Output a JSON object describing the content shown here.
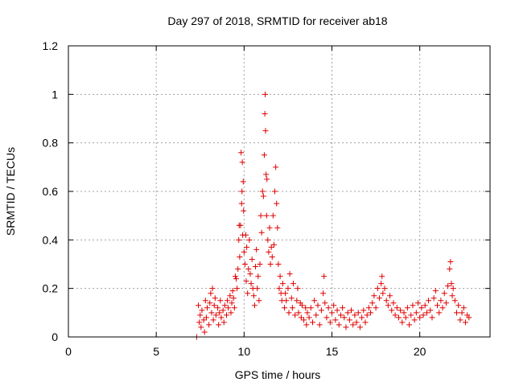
{
  "chart_data": {
    "type": "scatter",
    "title": "Day 297 of 2018, SRMTID for receiver ab18",
    "xlabel": "GPS time / hours",
    "ylabel": "SRMTID / TECUs",
    "xlim": [
      0,
      24
    ],
    "ylim": [
      0,
      1.2
    ],
    "x_ticks": [
      0,
      5,
      10,
      15,
      20
    ],
    "x_tick_labels": [
      "0",
      "5",
      "10",
      "15",
      "20"
    ],
    "y_ticks": [
      0,
      0.2,
      0.4,
      0.6,
      0.8,
      1.0,
      1.2
    ],
    "y_tick_labels": [
      "0",
      "0.2",
      "0.4",
      "0.6",
      "0.8",
      "1",
      "1.2"
    ],
    "grid": true,
    "marker": "plus",
    "series": [
      {
        "name": "ab18",
        "color": "#e00000",
        "points": [
          [
            7.3,
            0.0
          ],
          [
            7.4,
            0.13
          ],
          [
            7.45,
            0.06
          ],
          [
            7.5,
            0.09
          ],
          [
            7.55,
            0.04
          ],
          [
            7.6,
            0.11
          ],
          [
            7.7,
            0.07
          ],
          [
            7.75,
            0.02
          ],
          [
            7.8,
            0.15
          ],
          [
            7.85,
            0.08
          ],
          [
            7.9,
            0.12
          ],
          [
            8.0,
            0.05
          ],
          [
            8.05,
            0.14
          ],
          [
            8.1,
            0.18
          ],
          [
            8.15,
            0.1
          ],
          [
            8.2,
            0.2
          ],
          [
            8.25,
            0.07
          ],
          [
            8.3,
            0.13
          ],
          [
            8.35,
            0.16
          ],
          [
            8.4,
            0.09
          ],
          [
            8.5,
            0.12
          ],
          [
            8.55,
            0.05
          ],
          [
            8.6,
            0.1
          ],
          [
            8.65,
            0.15
          ],
          [
            8.7,
            0.08
          ],
          [
            8.8,
            0.11
          ],
          [
            8.85,
            0.06
          ],
          [
            8.9,
            0.13
          ],
          [
            9.0,
            0.09
          ],
          [
            9.05,
            0.15
          ],
          [
            9.1,
            0.12
          ],
          [
            9.2,
            0.17
          ],
          [
            9.25,
            0.1
          ],
          [
            9.3,
            0.14
          ],
          [
            9.35,
            0.19
          ],
          [
            9.4,
            0.16
          ],
          [
            9.45,
            0.12
          ],
          [
            9.5,
            0.25
          ],
          [
            9.55,
            0.24
          ],
          [
            9.6,
            0.2
          ],
          [
            9.65,
            0.28
          ],
          [
            9.7,
            0.4
          ],
          [
            9.72,
            0.46
          ],
          [
            9.75,
            0.33
          ],
          [
            9.8,
            0.46
          ],
          [
            9.83,
            0.76
          ],
          [
            9.86,
            0.55
          ],
          [
            9.88,
            0.6
          ],
          [
            9.9,
            0.72
          ],
          [
            9.92,
            0.42
          ],
          [
            9.95,
            0.64
          ],
          [
            9.97,
            0.52
          ],
          [
            10.0,
            0.35
          ],
          [
            10.05,
            0.3
          ],
          [
            10.1,
            0.42
          ],
          [
            10.12,
            0.23
          ],
          [
            10.15,
            0.37
          ],
          [
            10.2,
            0.18
          ],
          [
            10.25,
            0.28
          ],
          [
            10.3,
            0.4
          ],
          [
            10.35,
            0.26
          ],
          [
            10.4,
            0.22
          ],
          [
            10.45,
            0.32
          ],
          [
            10.5,
            0.2
          ],
          [
            10.55,
            0.17
          ],
          [
            10.6,
            0.13
          ],
          [
            10.65,
            0.29
          ],
          [
            10.7,
            0.36
          ],
          [
            10.75,
            0.2
          ],
          [
            10.8,
            0.25
          ],
          [
            10.85,
            0.15
          ],
          [
            10.9,
            0.3
          ],
          [
            10.95,
            0.5
          ],
          [
            11.0,
            0.43
          ],
          [
            11.05,
            0.6
          ],
          [
            11.1,
            0.58
          ],
          [
            11.15,
            0.75
          ],
          [
            11.18,
            0.92
          ],
          [
            11.2,
            1.0
          ],
          [
            11.22,
            0.85
          ],
          [
            11.25,
            0.67
          ],
          [
            11.28,
            0.5
          ],
          [
            11.3,
            0.65
          ],
          [
            11.35,
            0.4
          ],
          [
            11.4,
            0.35
          ],
          [
            11.45,
            0.45
          ],
          [
            11.5,
            0.3
          ],
          [
            11.55,
            0.37
          ],
          [
            11.6,
            0.33
          ],
          [
            11.65,
            0.5
          ],
          [
            11.7,
            0.38
          ],
          [
            11.75,
            0.6
          ],
          [
            11.8,
            0.7
          ],
          [
            11.85,
            0.55
          ],
          [
            11.9,
            0.45
          ],
          [
            11.95,
            0.3
          ],
          [
            12.0,
            0.2
          ],
          [
            12.05,
            0.25
          ],
          [
            12.1,
            0.18
          ],
          [
            12.15,
            0.15
          ],
          [
            12.2,
            0.22
          ],
          [
            12.3,
            0.12
          ],
          [
            12.35,
            0.18
          ],
          [
            12.4,
            0.15
          ],
          [
            12.5,
            0.2
          ],
          [
            12.55,
            0.1
          ],
          [
            12.6,
            0.26
          ],
          [
            12.7,
            0.16
          ],
          [
            12.75,
            0.12
          ],
          [
            12.8,
            0.22
          ],
          [
            12.9,
            0.09
          ],
          [
            13.0,
            0.15
          ],
          [
            13.05,
            0.2
          ],
          [
            13.1,
            0.1
          ],
          [
            13.2,
            0.14
          ],
          [
            13.25,
            0.08
          ],
          [
            13.3,
            0.13
          ],
          [
            13.4,
            0.07
          ],
          [
            13.5,
            0.12
          ],
          [
            13.55,
            0.05
          ],
          [
            13.6,
            0.1
          ],
          [
            13.7,
            0.08
          ],
          [
            13.8,
            0.12
          ],
          [
            13.9,
            0.06
          ],
          [
            14.0,
            0.15
          ],
          [
            14.1,
            0.09
          ],
          [
            14.2,
            0.13
          ],
          [
            14.3,
            0.05
          ],
          [
            14.4,
            0.11
          ],
          [
            14.5,
            0.18
          ],
          [
            14.55,
            0.25
          ],
          [
            14.6,
            0.14
          ],
          [
            14.7,
            0.08
          ],
          [
            14.8,
            0.12
          ],
          [
            14.9,
            0.06
          ],
          [
            15.0,
            0.1
          ],
          [
            15.1,
            0.13
          ],
          [
            15.2,
            0.07
          ],
          [
            15.3,
            0.11
          ],
          [
            15.4,
            0.05
          ],
          [
            15.5,
            0.09
          ],
          [
            15.6,
            0.12
          ],
          [
            15.7,
            0.08
          ],
          [
            15.8,
            0.04
          ],
          [
            15.9,
            0.1
          ],
          [
            16.0,
            0.07
          ],
          [
            16.1,
            0.11
          ],
          [
            16.2,
            0.05
          ],
          [
            16.3,
            0.09
          ],
          [
            16.4,
            0.06
          ],
          [
            16.5,
            0.1
          ],
          [
            16.6,
            0.04
          ],
          [
            16.7,
            0.08
          ],
          [
            16.8,
            0.11
          ],
          [
            16.9,
            0.06
          ],
          [
            17.0,
            0.09
          ],
          [
            17.1,
            0.12
          ],
          [
            17.2,
            0.1
          ],
          [
            17.3,
            0.14
          ],
          [
            17.4,
            0.17
          ],
          [
            17.5,
            0.12
          ],
          [
            17.6,
            0.2
          ],
          [
            17.7,
            0.16
          ],
          [
            17.8,
            0.22
          ],
          [
            17.85,
            0.25
          ],
          [
            17.9,
            0.18
          ],
          [
            18.0,
            0.2
          ],
          [
            18.1,
            0.15
          ],
          [
            18.2,
            0.13
          ],
          [
            18.3,
            0.17
          ],
          [
            18.4,
            0.11
          ],
          [
            18.5,
            0.14
          ],
          [
            18.6,
            0.09
          ],
          [
            18.7,
            0.12
          ],
          [
            18.8,
            0.08
          ],
          [
            18.9,
            0.11
          ],
          [
            19.0,
            0.06
          ],
          [
            19.1,
            0.1
          ],
          [
            19.2,
            0.08
          ],
          [
            19.3,
            0.12
          ],
          [
            19.4,
            0.05
          ],
          [
            19.5,
            0.09
          ],
          [
            19.6,
            0.13
          ],
          [
            19.7,
            0.07
          ],
          [
            19.8,
            0.1
          ],
          [
            19.9,
            0.14
          ],
          [
            20.0,
            0.08
          ],
          [
            20.1,
            0.12
          ],
          [
            20.2,
            0.09
          ],
          [
            20.3,
            0.13
          ],
          [
            20.4,
            0.1
          ],
          [
            20.5,
            0.15
          ],
          [
            20.6,
            0.11
          ],
          [
            20.7,
            0.08
          ],
          [
            20.8,
            0.16
          ],
          [
            20.9,
            0.19
          ],
          [
            21.0,
            0.13
          ],
          [
            21.1,
            0.1
          ],
          [
            21.2,
            0.15
          ],
          [
            21.3,
            0.12
          ],
          [
            21.4,
            0.18
          ],
          [
            21.5,
            0.14
          ],
          [
            21.6,
            0.21
          ],
          [
            21.7,
            0.28
          ],
          [
            21.75,
            0.31
          ],
          [
            21.8,
            0.22
          ],
          [
            21.85,
            0.17
          ],
          [
            21.9,
            0.2
          ],
          [
            22.0,
            0.15
          ],
          [
            22.1,
            0.1
          ],
          [
            22.2,
            0.13
          ],
          [
            22.3,
            0.07
          ],
          [
            22.4,
            0.1
          ],
          [
            22.5,
            0.12
          ],
          [
            22.6,
            0.06
          ],
          [
            22.7,
            0.09
          ],
          [
            22.8,
            0.08
          ]
        ]
      }
    ]
  }
}
